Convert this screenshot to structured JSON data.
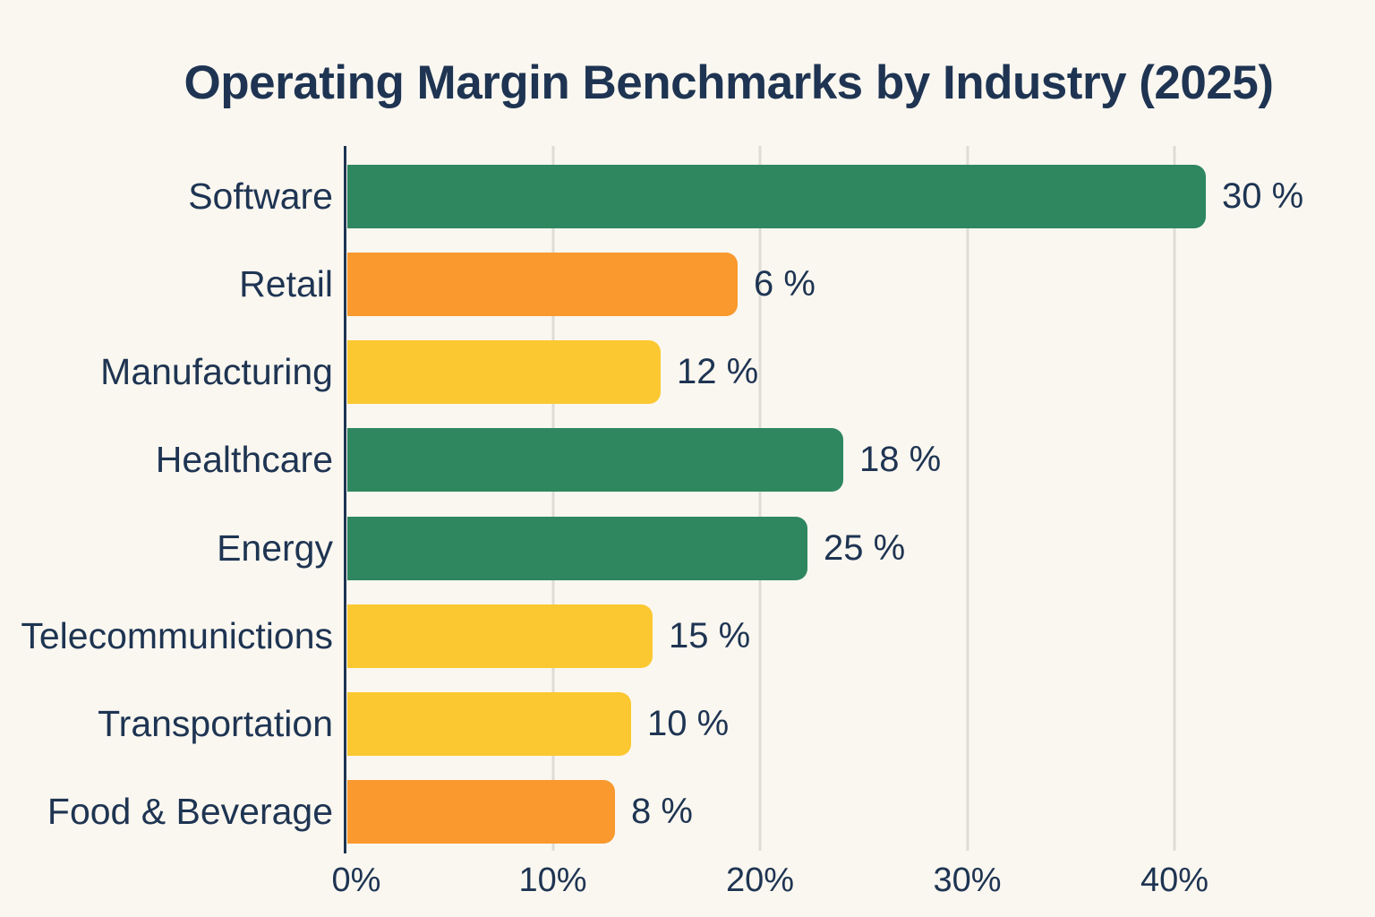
{
  "title": "Operating Margin Benchmarks by Industry (2025)",
  "colors": {
    "background": "#FAF7F0",
    "text": "#1E3452",
    "axis": "#1E3452",
    "gridline": "#DEDDD5",
    "green": "#2F875F",
    "orange": "#F9992E",
    "yellow": "#FCC831"
  },
  "chart_data": {
    "type": "bar",
    "orientation": "horizontal",
    "title": "Operating Margin Benchmarks by Industry (2025)",
    "xlabel": "",
    "ylabel": "",
    "grid": true,
    "legend": null,
    "x_axis": {
      "tick_labels": [
        "0%",
        "10%",
        "20%",
        "30%",
        "40%"
      ],
      "tick_values": [
        0,
        10,
        20,
        30,
        40
      ],
      "range_pct": [
        0,
        49.7
      ]
    },
    "categories": [
      "Software",
      "Retail",
      "Manufacturing",
      "Healthcare",
      "Energy",
      "Telecommunictions",
      "Transportation",
      "Food & Beverage"
    ],
    "values": [
      30,
      6,
      12,
      18,
      25,
      15,
      10,
      8
    ],
    "bars": [
      {
        "category": "Software",
        "value_label": "30 %",
        "value_pct": 30,
        "visual_length_pct": 41.5,
        "color_key": "green"
      },
      {
        "category": "Retail",
        "value_label": "6 %",
        "value_pct": 6,
        "visual_length_pct": 18.9,
        "color_key": "orange"
      },
      {
        "category": "Manufacturing",
        "value_label": "12 %",
        "value_pct": 12,
        "visual_length_pct": 15.2,
        "color_key": "yellow"
      },
      {
        "category": "Healthcare",
        "value_label": "18 %",
        "value_pct": 18,
        "visual_length_pct": 24.0,
        "color_key": "green"
      },
      {
        "category": "Energy",
        "value_label": "25 %",
        "value_pct": 25,
        "visual_length_pct": 22.3,
        "color_key": "green"
      },
      {
        "category": "Telecommunictions",
        "value_label": "15 %",
        "value_pct": 15,
        "visual_length_pct": 14.8,
        "color_key": "yellow"
      },
      {
        "category": "Transportation",
        "value_label": "10 %",
        "value_pct": 10,
        "visual_length_pct": 13.8,
        "color_key": "yellow"
      },
      {
        "category": "Food & Beverage",
        "value_label": "8 %",
        "value_pct": 8,
        "visual_length_pct": 13.0,
        "color_key": "orange"
      }
    ]
  }
}
